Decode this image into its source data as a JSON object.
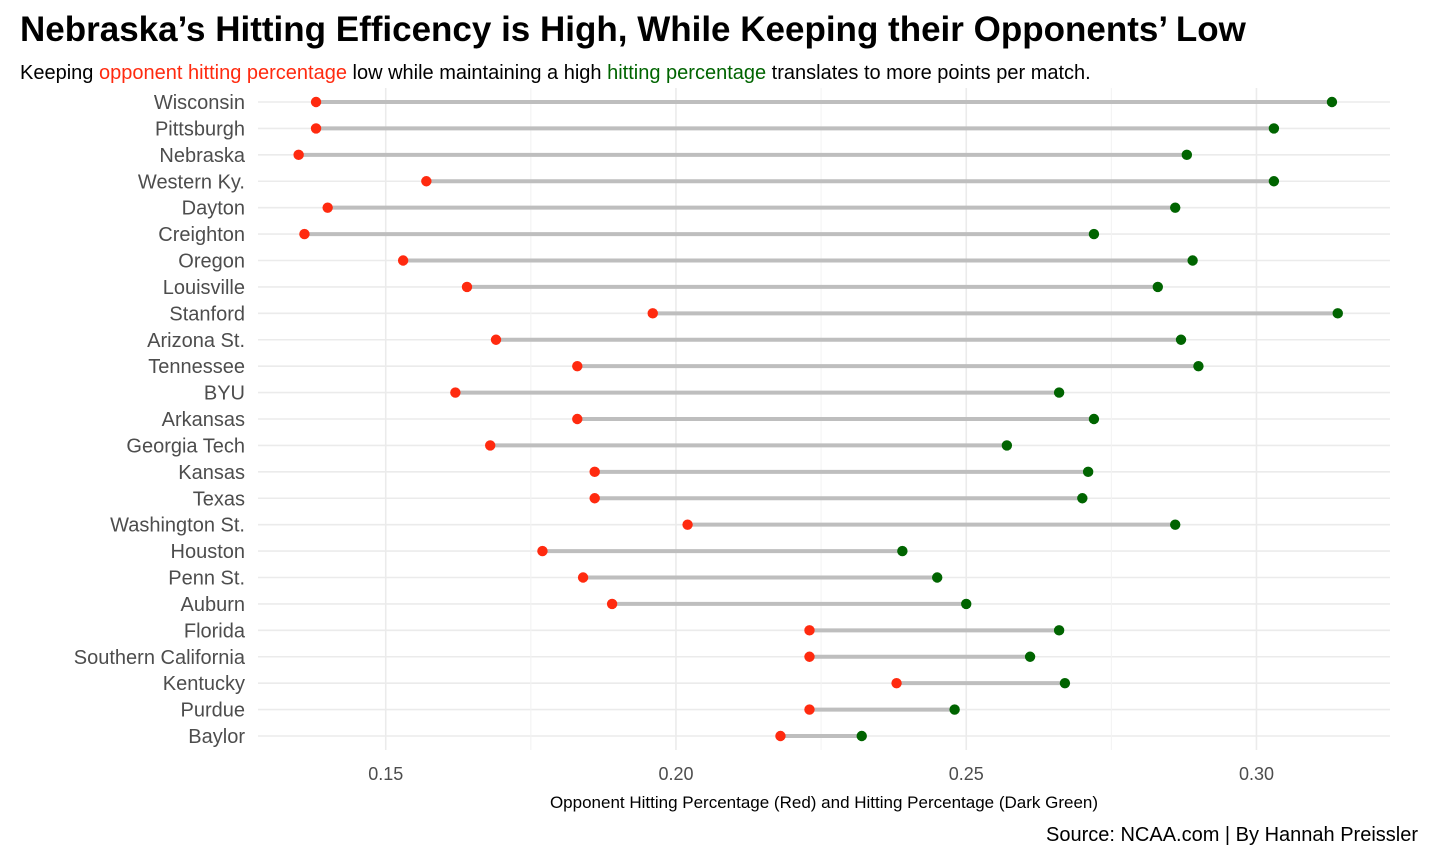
{
  "title": "Nebraska’s Hitting Efficency is High, While Keeping their Opponents’ Low",
  "subtitle": {
    "p1": "Keeping ",
    "opp": "opponent hitting percentage",
    "p2": " low while maintaining a high ",
    "hit": "hitting percentage",
    "p3": " translates to more points per match."
  },
  "caption": "Source: NCAA.com | By Hannah Preissler",
  "colors": {
    "opponent": "#FF2A0F",
    "hitting": "#006400",
    "segment": "#BEBEBE",
    "grid": "#EBEBEB",
    "tick_text": "#4D4D4D"
  },
  "chart_data": {
    "type": "dumbbell",
    "xlabel": "Opponent Hitting Percentage (Red) and Hitting Percentage (Dark Green)",
    "xlim": [
      0.128,
      0.323
    ],
    "xticks": [
      0.15,
      0.2,
      0.25,
      0.3
    ],
    "xtick_labels": [
      "0.15",
      "0.20",
      "0.25",
      "0.30"
    ],
    "grid": true,
    "categories": [
      "Wisconsin",
      "Pittsburgh",
      "Nebraska",
      "Western Ky.",
      "Dayton",
      "Creighton",
      "Oregon",
      "Louisville",
      "Stanford",
      "Arizona St.",
      "Tennessee",
      "BYU",
      "Arkansas",
      "Georgia Tech",
      "Kansas",
      "Texas",
      "Washington St.",
      "Houston",
      "Penn St.",
      "Auburn",
      "Florida",
      "Southern California",
      "Kentucky",
      "Purdue",
      "Baylor"
    ],
    "series": [
      {
        "values": [
          0.138,
          0.138,
          0.135,
          0.157,
          0.14,
          0.136,
          0.153,
          0.164,
          0.196,
          0.169,
          0.183,
          0.162,
          0.183,
          0.168,
          0.186,
          0.186,
          0.202,
          0.177,
          0.184,
          0.189,
          0.223,
          0.223,
          0.238,
          0.223,
          0.218
        ]
      },
      {
        "values": [
          0.313,
          0.303,
          0.288,
          0.303,
          0.286,
          0.272,
          0.289,
          0.283,
          0.314,
          0.287,
          0.29,
          0.266,
          0.272,
          0.257,
          0.271,
          0.27,
          0.286,
          0.239,
          0.245,
          0.25,
          0.266,
          0.261,
          0.267,
          0.248,
          0.232
        ]
      }
    ]
  }
}
